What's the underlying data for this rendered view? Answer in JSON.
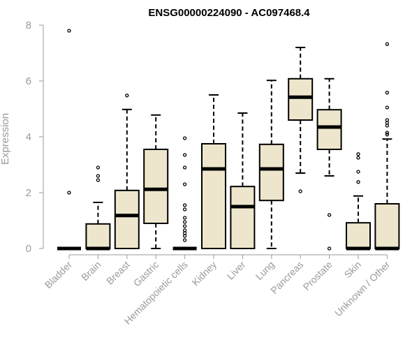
{
  "chart_data": {
    "type": "boxplot",
    "title": "ENSG00000224090 - AC097468.4",
    "xlabel": "",
    "ylabel": "Expression",
    "ylim": [
      0,
      8
    ],
    "yticks": [
      0,
      2,
      4,
      6,
      8
    ],
    "box_fill": "#ede6cc",
    "categories": [
      "Bladder",
      "Brain",
      "Breast",
      "Gastric",
      "Hematopoietic cells",
      "Kidney",
      "Liver",
      "Lung",
      "Pancreas",
      "Prostate",
      "Skin",
      "Unknown / Other"
    ],
    "boxes": [
      {
        "q1": 0,
        "median": 0,
        "q3": 0,
        "whisker_low": 0,
        "whisker_high": 0,
        "outliers": [
          2.0,
          7.8
        ]
      },
      {
        "q1": 0,
        "median": 0,
        "q3": 0.88,
        "whisker_low": 0,
        "whisker_high": 1.65,
        "outliers": [
          2.45,
          2.6,
          2.9
        ]
      },
      {
        "q1": 0,
        "median": 1.18,
        "q3": 2.08,
        "whisker_low": 0,
        "whisker_high": 4.98,
        "outliers": [
          5.48
        ]
      },
      {
        "q1": 0.9,
        "median": 2.12,
        "q3": 3.55,
        "whisker_low": 0,
        "whisker_high": 4.78,
        "outliers": []
      },
      {
        "q1": 0,
        "median": 0,
        "q3": 0,
        "whisker_low": 0,
        "whisker_high": 0,
        "outliers": [
          0.3,
          0.45,
          0.55,
          0.65,
          0.8,
          0.95,
          1.1,
          1.4,
          1.55,
          2.3,
          2.9,
          3.35,
          3.95
        ]
      },
      {
        "q1": 0,
        "median": 2.85,
        "q3": 3.75,
        "whisker_low": 0,
        "whisker_high": 5.5,
        "outliers": []
      },
      {
        "q1": 0,
        "median": 1.5,
        "q3": 2.22,
        "whisker_low": 0,
        "whisker_high": 4.85,
        "outliers": []
      },
      {
        "q1": 1.72,
        "median": 2.85,
        "q3": 3.73,
        "whisker_low": 0,
        "whisker_high": 6.02,
        "outliers": []
      },
      {
        "q1": 4.6,
        "median": 5.42,
        "q3": 6.08,
        "whisker_low": 2.7,
        "whisker_high": 7.2,
        "outliers": [
          2.05
        ]
      },
      {
        "q1": 3.55,
        "median": 4.35,
        "q3": 4.97,
        "whisker_low": 2.6,
        "whisker_high": 6.08,
        "outliers": [
          0,
          1.2
        ]
      },
      {
        "q1": 0,
        "median": 0,
        "q3": 0.92,
        "whisker_low": 0,
        "whisker_high": 1.88,
        "outliers": [
          2.38,
          2.75,
          3.25,
          3.38
        ]
      },
      {
        "q1": 0,
        "median": 0,
        "q3": 1.6,
        "whisker_low": 0,
        "whisker_high": 3.92,
        "outliers": [
          4.08,
          4.15,
          4.4,
          4.5,
          4.6,
          5.05,
          5.58,
          7.32
        ]
      }
    ]
  }
}
